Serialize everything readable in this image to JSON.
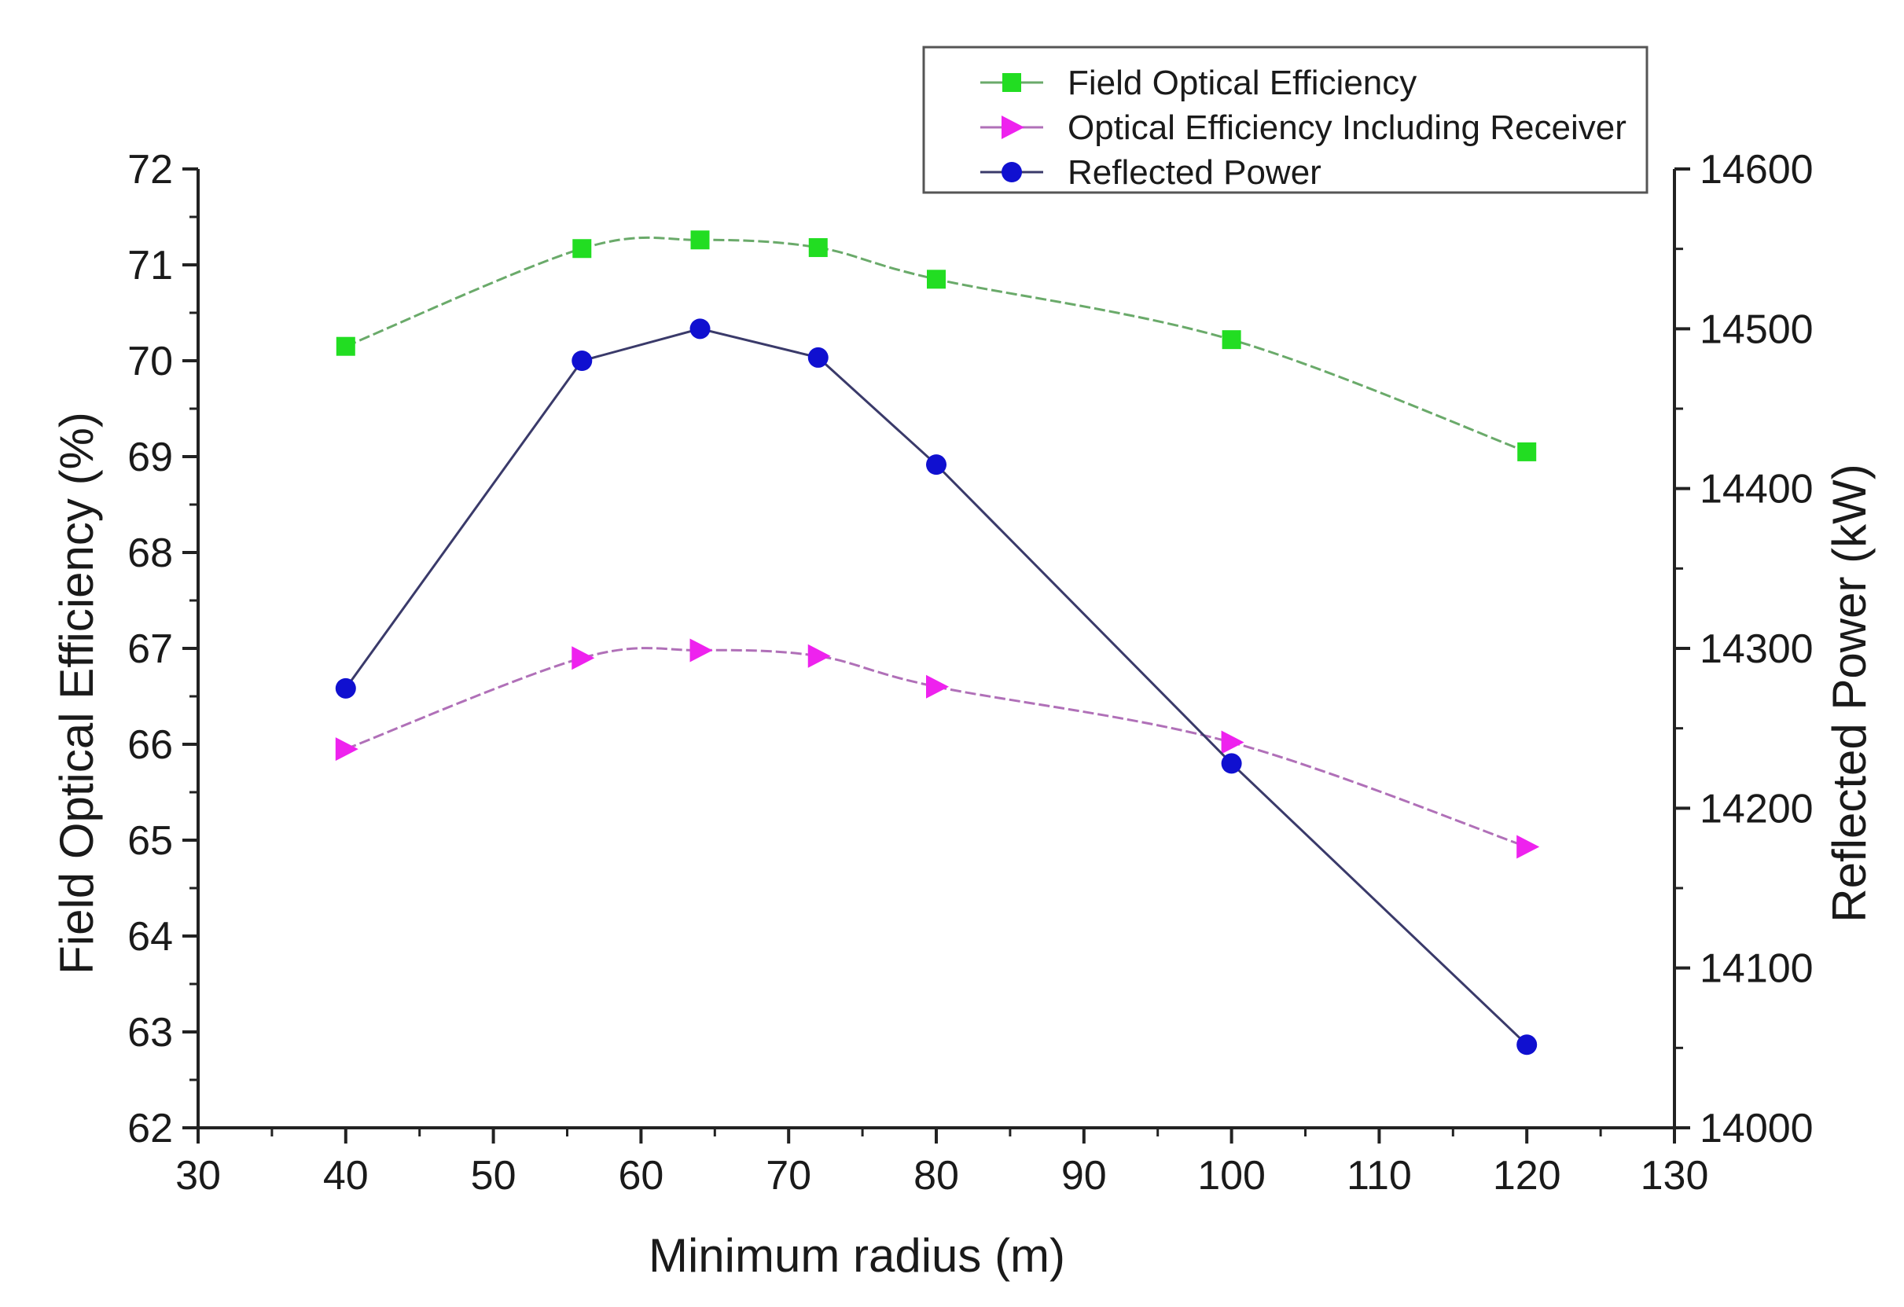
{
  "chart_data": {
    "type": "line",
    "title": "",
    "xlabel": "Minimum radius (m)",
    "ylabel": "Field Optical Efficiency (%)",
    "y2label": "Reflected Power (kW)",
    "xlim": [
      30,
      130
    ],
    "ylim": [
      62,
      72
    ],
    "y2lim": [
      14000,
      14600
    ],
    "xticks": [
      30,
      40,
      50,
      60,
      70,
      80,
      90,
      100,
      110,
      120,
      130
    ],
    "yticks": [
      62,
      63,
      64,
      65,
      66,
      67,
      68,
      69,
      70,
      71,
      72
    ],
    "y2ticks": [
      14000,
      14100,
      14200,
      14300,
      14400,
      14500,
      14600
    ],
    "legend_position": "top-right",
    "series": [
      {
        "name": "Field Optical Efficiency",
        "axis": "left",
        "marker": "square",
        "color": "#22dd22",
        "line_color": "#6aaa6a",
        "smooth": true,
        "x": [
          40,
          56,
          64,
          72,
          80,
          100,
          120
        ],
        "values": [
          70.15,
          71.17,
          71.26,
          71.18,
          70.85,
          70.22,
          69.05
        ]
      },
      {
        "name": "Optical Efficiency Including Receiver",
        "axis": "left",
        "marker": "triangle-right",
        "color": "#ee22ee",
        "line_color": "#b070b8",
        "smooth": true,
        "x": [
          40,
          56,
          64,
          72,
          80,
          100,
          120
        ],
        "values": [
          65.95,
          66.9,
          66.98,
          66.92,
          66.6,
          66.02,
          64.93
        ]
      },
      {
        "name": "Reflected Power",
        "axis": "right",
        "marker": "circle",
        "color": "#1010d0",
        "line_color": "#3a3a6a",
        "smooth": false,
        "x": [
          40,
          56,
          64,
          72,
          80,
          100,
          120
        ],
        "values": [
          14275,
          14480,
          14500,
          14482,
          14415,
          14228,
          14052
        ]
      }
    ]
  }
}
